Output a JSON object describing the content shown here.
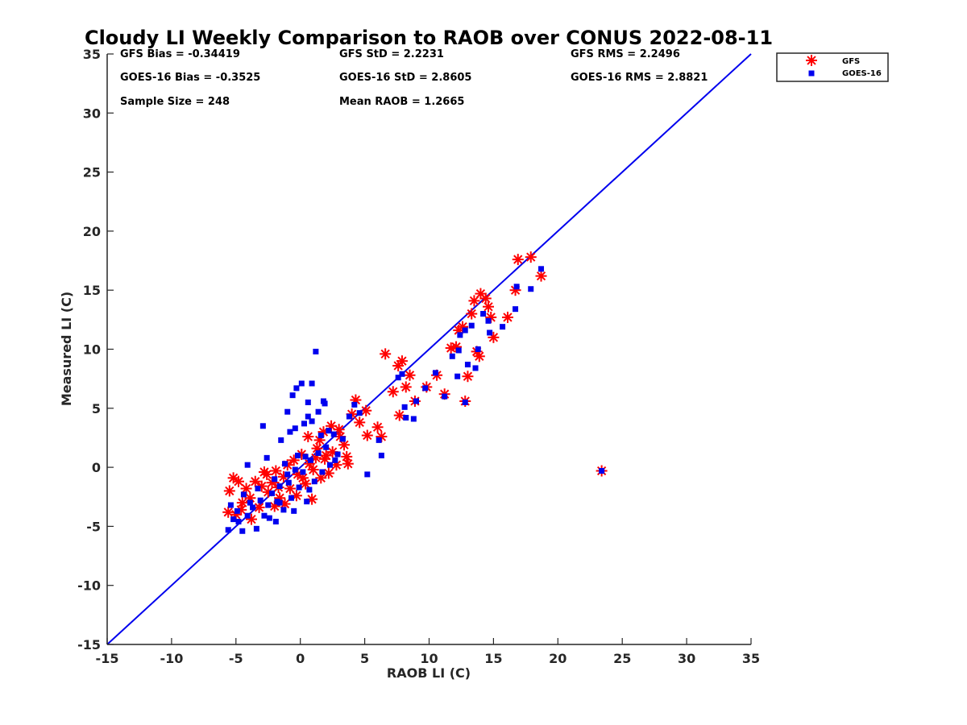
{
  "chart_data": {
    "type": "scatter",
    "title": "Cloudy LI Weekly Comparison to RAOB over CONUS 2022-08-11",
    "xlabel": "RAOB LI (C)",
    "ylabel": "Measured LI (C)",
    "xlim": [
      -15,
      35
    ],
    "ylim": [
      -15,
      35
    ],
    "xticks": [
      "-15",
      "-10",
      "-5",
      "0",
      "5",
      "10",
      "15",
      "20",
      "25",
      "30",
      "35"
    ],
    "yticks": [
      "-15",
      "-10",
      "-5",
      "0",
      "5",
      "10",
      "15",
      "20",
      "25",
      "30",
      "35"
    ],
    "grid": false,
    "legend_position": "top-right, outside plot",
    "reference_line": {
      "label": "1:1",
      "x": [
        -15,
        35
      ],
      "y": [
        -15,
        35
      ],
      "color": "#0000ee"
    },
    "stats": [
      "GFS Bias = -0.34419",
      "GFS StD = 2.2231",
      "GFS RMS = 2.2496",
      "GOES-16 Bias = -0.3525",
      "GOES-16 StD = 2.8605",
      "GOES-16 RMS = 2.8821",
      "Sample Size = 248",
      "Mean RAOB = 1.2665"
    ],
    "series": [
      {
        "name": "GFS",
        "marker": "asterisk",
        "color": "#ff0000",
        "points": [
          [
            -5.5,
            -2.0
          ],
          [
            -5.2,
            -0.9
          ],
          [
            -4.8,
            -1.2
          ],
          [
            -4.5,
            -3.0
          ],
          [
            -5.0,
            -4.0
          ],
          [
            -4.2,
            -1.8
          ],
          [
            -3.9,
            -2.6
          ],
          [
            -3.5,
            -1.2
          ],
          [
            -3.2,
            -3.4
          ],
          [
            -2.8,
            -0.4
          ],
          [
            -2.5,
            -2.1
          ],
          [
            -2.2,
            -1.3
          ],
          [
            -1.9,
            -0.3
          ],
          [
            -1.6,
            -2.6
          ],
          [
            -1.3,
            -0.8
          ],
          [
            -1.0,
            0.2
          ],
          [
            -0.8,
            -1.8
          ],
          [
            -0.5,
            0.6
          ],
          [
            -0.2,
            -0.6
          ],
          [
            0.1,
            1.1
          ],
          [
            0.4,
            -1.4
          ],
          [
            0.7,
            0.3
          ],
          [
            1.0,
            -0.2
          ],
          [
            1.3,
            1.6
          ],
          [
            1.6,
            -0.9
          ],
          [
            1.9,
            0.7
          ],
          [
            2.2,
            -0.5
          ],
          [
            2.5,
            1.3
          ],
          [
            2.8,
            0.2
          ],
          [
            3.1,
            2.6
          ],
          [
            3.4,
            1.9
          ],
          [
            3.7,
            0.3
          ],
          [
            3.0,
            3.2
          ],
          [
            2.4,
            3.5
          ],
          [
            1.8,
            3.0
          ],
          [
            4.0,
            4.5
          ],
          [
            4.3,
            5.7
          ],
          [
            4.6,
            3.8
          ],
          [
            5.2,
            2.7
          ],
          [
            6.0,
            3.4
          ],
          [
            6.3,
            2.6
          ],
          [
            5.1,
            4.8
          ],
          [
            6.6,
            9.6
          ],
          [
            7.2,
            6.4
          ],
          [
            7.7,
            4.4
          ],
          [
            7.6,
            8.6
          ],
          [
            7.9,
            9.0
          ],
          [
            8.2,
            6.8
          ],
          [
            8.5,
            7.8
          ],
          [
            8.9,
            5.6
          ],
          [
            9.8,
            6.8
          ],
          [
            10.6,
            7.8
          ],
          [
            11.2,
            6.2
          ],
          [
            11.7,
            10.1
          ],
          [
            12.1,
            10.2
          ],
          [
            12.3,
            11.6
          ],
          [
            12.6,
            11.9
          ],
          [
            12.8,
            5.6
          ],
          [
            13.0,
            7.7
          ],
          [
            13.3,
            13.0
          ],
          [
            13.5,
            14.1
          ],
          [
            13.7,
            9.8
          ],
          [
            13.9,
            9.4
          ],
          [
            14.0,
            14.7
          ],
          [
            14.4,
            14.3
          ],
          [
            14.6,
            13.6
          ],
          [
            14.8,
            12.7
          ],
          [
            15.0,
            11.0
          ],
          [
            16.1,
            12.7
          ],
          [
            16.7,
            15.0
          ],
          [
            16.9,
            17.6
          ],
          [
            17.9,
            17.8
          ],
          [
            18.7,
            16.2
          ],
          [
            23.4,
            -0.3
          ],
          [
            -3.8,
            -4.4
          ],
          [
            -4.6,
            -3.6
          ],
          [
            0.6,
            2.6
          ],
          [
            1.5,
            2.3
          ],
          [
            2.0,
            1.0
          ],
          [
            -1.2,
            -3.1
          ],
          [
            -0.3,
            -2.4
          ],
          [
            0.9,
            -2.7
          ],
          [
            -2.0,
            -3.3
          ],
          [
            3.6,
            0.9
          ],
          [
            -2.6,
            -0.6
          ],
          [
            -1.7,
            -1.7
          ],
          [
            0.2,
            -0.9
          ],
          [
            1.2,
            0.8
          ],
          [
            -5.6,
            -3.8
          ],
          [
            -3.0,
            -1.6
          ]
        ]
      },
      {
        "name": "GOES-16",
        "marker": "square",
        "color": "#0000ee",
        "points": [
          [
            -5.6,
            -5.3
          ],
          [
            -5.2,
            -4.4
          ],
          [
            -4.9,
            -3.7
          ],
          [
            -4.5,
            -5.4
          ],
          [
            -4.1,
            -4.1
          ],
          [
            -3.7,
            -3.4
          ],
          [
            -3.4,
            -5.2
          ],
          [
            -3.1,
            -2.8
          ],
          [
            -2.8,
            -4.1
          ],
          [
            -2.5,
            -3.2
          ],
          [
            -2.2,
            -2.2
          ],
          [
            -1.9,
            -4.6
          ],
          [
            -1.6,
            -1.6
          ],
          [
            -1.3,
            -3.6
          ],
          [
            -1.0,
            -0.6
          ],
          [
            -0.7,
            -2.6
          ],
          [
            -0.4,
            -0.2
          ],
          [
            -0.1,
            -1.7
          ],
          [
            0.2,
            -0.4
          ],
          [
            0.5,
            -2.9
          ],
          [
            0.8,
            0.6
          ],
          [
            1.1,
            -1.2
          ],
          [
            1.4,
            1.2
          ],
          [
            1.7,
            -0.4
          ],
          [
            2.0,
            1.7
          ],
          [
            2.3,
            0.2
          ],
          [
            2.6,
            2.8
          ],
          [
            2.9,
            1.1
          ],
          [
            -2.9,
            3.5
          ],
          [
            -1.5,
            2.3
          ],
          [
            -1.0,
            4.7
          ],
          [
            -0.6,
            6.1
          ],
          [
            -0.3,
            6.7
          ],
          [
            0.1,
            7.1
          ],
          [
            0.9,
            7.1
          ],
          [
            1.2,
            9.8
          ],
          [
            0.6,
            5.5
          ],
          [
            1.8,
            5.6
          ],
          [
            0.3,
            3.7
          ],
          [
            -0.8,
            3.0
          ],
          [
            0.9,
            3.9
          ],
          [
            1.4,
            4.7
          ],
          [
            -0.2,
            1.0
          ],
          [
            -4.1,
            0.2
          ],
          [
            -2.6,
            0.8
          ],
          [
            4.2,
            5.3
          ],
          [
            4.6,
            4.6
          ],
          [
            5.2,
            -0.6
          ],
          [
            6.3,
            1.0
          ],
          [
            6.1,
            2.3
          ],
          [
            7.6,
            7.6
          ],
          [
            7.9,
            7.9
          ],
          [
            8.1,
            5.1
          ],
          [
            8.2,
            4.2
          ],
          [
            8.8,
            4.1
          ],
          [
            9.7,
            6.7
          ],
          [
            10.5,
            8.0
          ],
          [
            11.2,
            6.0
          ],
          [
            11.8,
            9.4
          ],
          [
            12.2,
            7.7
          ],
          [
            12.3,
            9.9
          ],
          [
            12.4,
            11.2
          ],
          [
            12.8,
            11.6
          ],
          [
            12.8,
            5.5
          ],
          [
            13.0,
            8.7
          ],
          [
            13.3,
            12.0
          ],
          [
            13.6,
            8.4
          ],
          [
            13.8,
            10.0
          ],
          [
            14.2,
            13.0
          ],
          [
            14.6,
            12.4
          ],
          [
            14.7,
            11.4
          ],
          [
            15.7,
            11.9
          ],
          [
            16.7,
            13.4
          ],
          [
            16.8,
            15.3
          ],
          [
            17.9,
            15.1
          ],
          [
            18.7,
            16.8
          ],
          [
            23.4,
            -0.3
          ],
          [
            -0.5,
            -3.7
          ],
          [
            0.7,
            -1.9
          ],
          [
            -2.0,
            -1.0
          ],
          [
            -3.3,
            -1.8
          ],
          [
            -4.4,
            -2.3
          ],
          [
            1.6,
            2.7
          ],
          [
            2.2,
            3.1
          ],
          [
            3.3,
            2.4
          ],
          [
            -1.8,
            -2.9
          ],
          [
            -0.9,
            -1.3
          ],
          [
            0.4,
            0.9
          ],
          [
            -3.9,
            -3.0
          ],
          [
            -2.4,
            -4.3
          ],
          [
            3.8,
            4.3
          ],
          [
            -5.4,
            -3.2
          ],
          [
            -0.4,
            3.3
          ],
          [
            0.6,
            4.3
          ],
          [
            1.9,
            5.4
          ],
          [
            -1.2,
            0.3
          ],
          [
            2.7,
            0.6
          ],
          [
            -4.8,
            -4.6
          ],
          [
            9.0,
            5.6
          ],
          [
            -1.6,
            -3.0
          ]
        ]
      }
    ]
  }
}
